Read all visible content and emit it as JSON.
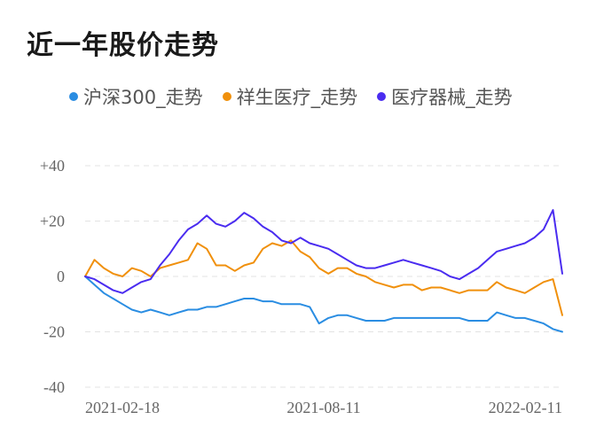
{
  "chart_data": {
    "type": "line",
    "title": "近一年股价走势",
    "x_ticks": [
      "2021-02-18",
      "2021-08-11",
      "2022-02-11"
    ],
    "y_ticks": [
      40,
      20,
      0,
      -20,
      -40
    ],
    "y_tick_labels": [
      "+40",
      "+20",
      "0",
      "-20",
      "-40"
    ],
    "ylim": [
      -40,
      40
    ],
    "grid": true,
    "legend_position": "top",
    "series": [
      {
        "name": "沪深300_走势",
        "color": "#2a8de2",
        "values": [
          0,
          -3,
          -6,
          -8,
          -10,
          -12,
          -13,
          -12,
          -13,
          -14,
          -13,
          -12,
          -12,
          -11,
          -11,
          -10,
          -9,
          -8,
          -8,
          -9,
          -9,
          -10,
          -10,
          -10,
          -11,
          -17,
          -15,
          -14,
          -14,
          -15,
          -16,
          -16,
          -16,
          -15,
          -15,
          -15,
          -15,
          -15,
          -15,
          -15,
          -15,
          -16,
          -16,
          -16,
          -13,
          -14,
          -15,
          -15,
          -16,
          -17,
          -19,
          -20
        ]
      },
      {
        "name": "祥生医疗_走势",
        "color": "#f0900c",
        "values": [
          0,
          6,
          3,
          1,
          0,
          3,
          2,
          0,
          3,
          4,
          5,
          6,
          12,
          10,
          4,
          4,
          2,
          4,
          5,
          10,
          12,
          11,
          13,
          9,
          7,
          3,
          1,
          3,
          3,
          1,
          0,
          -2,
          -3,
          -4,
          -3,
          -3,
          -5,
          -4,
          -4,
          -5,
          -6,
          -5,
          -5,
          -5,
          -2,
          -4,
          -5,
          -6,
          -4,
          -2,
          -1,
          -14
        ]
      },
      {
        "name": "医疗器械_走势",
        "color": "#4a2cf0",
        "values": [
          0,
          -1,
          -3,
          -5,
          -6,
          -4,
          -2,
          -1,
          4,
          8,
          13,
          17,
          19,
          22,
          19,
          18,
          20,
          23,
          21,
          18,
          16,
          13,
          12,
          14,
          12,
          11,
          10,
          8,
          6,
          4,
          3,
          3,
          4,
          5,
          6,
          5,
          4,
          3,
          2,
          0,
          -1,
          1,
          3,
          6,
          9,
          10,
          11,
          12,
          14,
          17,
          24,
          1
        ]
      }
    ]
  }
}
